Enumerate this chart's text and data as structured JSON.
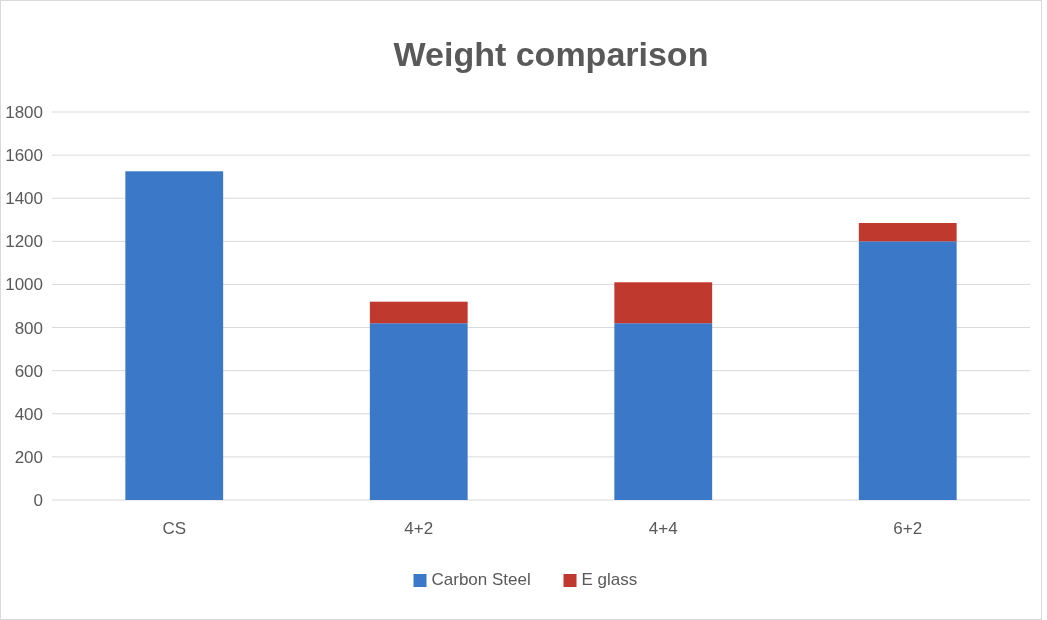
{
  "chart_data": {
    "type": "bar",
    "title": "Weight comparison",
    "categories": [
      "CS",
      "4+2",
      "4+4",
      "6+2"
    ],
    "stacked": true,
    "series": [
      {
        "name": "Carbon Steel",
        "color": "#3b78c8",
        "values": [
          1525,
          820,
          820,
          1200
        ]
      },
      {
        "name": "E glass",
        "color": "#c0392f",
        "values": [
          null,
          100,
          190,
          85
        ]
      }
    ],
    "ylim": [
      0,
      1800
    ],
    "yticks": [
      0,
      200,
      400,
      600,
      800,
      1000,
      1200,
      1400,
      1600,
      1800
    ],
    "grid": "y",
    "legend": "bottom"
  }
}
